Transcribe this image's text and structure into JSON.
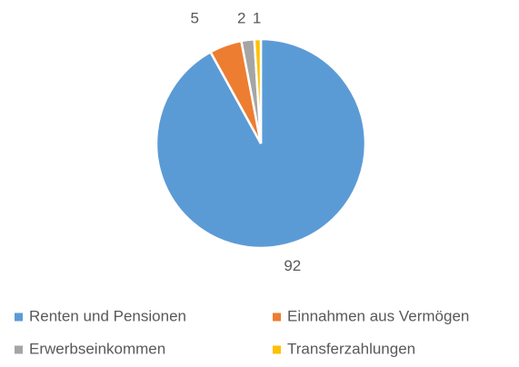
{
  "chart_data": {
    "type": "pie",
    "categories": [
      "Renten und Pensionen",
      "Einnahmen aus Vermögen",
      "Erwerbseinkommen",
      "Transferzahlungen"
    ],
    "values": [
      92,
      5,
      2,
      1
    ],
    "colors": [
      "#5b9bd5",
      "#ed7d31",
      "#a5a5a5",
      "#ffc000"
    ],
    "legend": "bottom"
  }
}
